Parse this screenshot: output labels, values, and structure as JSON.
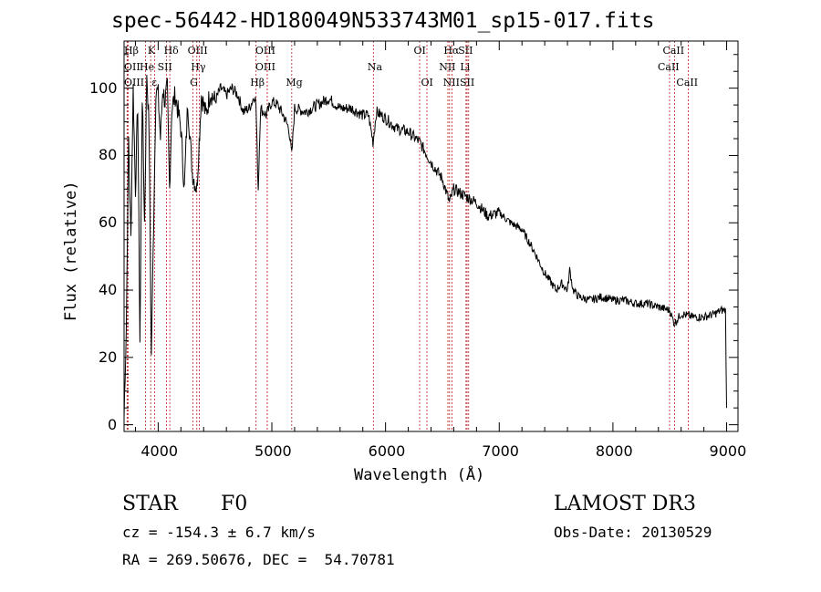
{
  "chart_data": {
    "type": "line",
    "title": "spec-56442-HD180049N533743M01_sp15-017.fits",
    "xlabel": "Wavelength (Å)",
    "ylabel": "Flux (relative)",
    "xlim": [
      3700,
      9100
    ],
    "ylim": [
      -2,
      114
    ],
    "x_ticks": [
      4000,
      5000,
      6000,
      7000,
      8000,
      9000
    ],
    "y_ticks": [
      0,
      20,
      40,
      60,
      80,
      100
    ],
    "series": [
      {
        "name": "flux",
        "x": [
          3700,
          3720,
          3740,
          3760,
          3780,
          3800,
          3820,
          3840,
          3860,
          3880,
          3900,
          3920,
          3940,
          3960,
          3980,
          4000,
          4020,
          4040,
          4060,
          4080,
          4100,
          4120,
          4150,
          4180,
          4200,
          4230,
          4260,
          4300,
          4340,
          4380,
          4420,
          4460,
          4500,
          4550,
          4600,
          4650,
          4700,
          4750,
          4800,
          4850,
          4860,
          4880,
          4900,
          4950,
          5000,
          5050,
          5100,
          5150,
          5175,
          5200,
          5300,
          5400,
          5500,
          5600,
          5700,
          5800,
          5850,
          5890,
          5920,
          6000,
          6100,
          6200,
          6300,
          6400,
          6500,
          6562,
          6600,
          6700,
          6800,
          6900,
          7000,
          7100,
          7200,
          7300,
          7400,
          7500,
          7550,
          7600,
          7620,
          7650,
          7700,
          7800,
          7900,
          8000,
          8100,
          8200,
          8300,
          8400,
          8500,
          8540,
          8600,
          8700,
          8800,
          8900,
          8950,
          8990,
          9000
        ],
        "y": [
          2,
          30,
          85,
          55,
          100,
          70,
          95,
          25,
          98,
          60,
          105,
          88,
          20,
          60,
          100,
          98,
          85,
          100,
          96,
          100,
          70,
          94,
          98,
          92,
          88,
          70,
          96,
          75,
          70,
          98,
          92,
          99,
          96,
          100,
          98,
          100,
          98,
          93,
          94,
          98,
          95,
          70,
          94,
          92,
          96,
          95,
          92,
          88,
          80,
          94,
          93,
          95,
          97,
          94,
          94,
          92,
          92,
          84,
          93,
          91,
          88,
          87,
          84,
          78,
          73,
          66,
          70,
          68,
          66,
          62,
          63,
          60,
          58,
          52,
          45,
          40,
          42,
          40,
          46,
          40,
          38,
          37,
          38,
          37,
          37,
          36,
          36,
          35,
          34,
          30,
          33,
          32,
          32,
          33,
          34,
          34,
          5
        ]
      }
    ],
    "spectral_lines": [
      {
        "label": "Hβ",
        "x": 3735,
        "row": 1
      },
      {
        "label": "OII",
        "x": 3727,
        "row": 2
      },
      {
        "label": "OIII",
        "x": 3727,
        "row": 3
      },
      {
        "label": "K",
        "x": 3934,
        "row": 1
      },
      {
        "label": "He",
        "x": 3889,
        "row": 2
      },
      {
        "label": "ε",
        "x": 3970,
        "row": 3
      },
      {
        "label": "Hδ",
        "x": 4102,
        "row": 1
      },
      {
        "label": "SII",
        "x": 4072,
        "row": 2
      },
      {
        "label": "OIII",
        "x": 4363,
        "row": 1
      },
      {
        "label": "Hγ",
        "x": 4340,
        "row": 2
      },
      {
        "label": "G",
        "x": 4305,
        "row": 3
      },
      {
        "label": "OIII",
        "x": 4959,
        "row": 1
      },
      {
        "label": "OIII",
        "x": 4959,
        "row": 2
      },
      {
        "label": "Hβ",
        "x": 4861,
        "row": 3
      },
      {
        "label": "Mg",
        "x": 5175,
        "row": 3
      },
      {
        "label": "Na",
        "x": 5893,
        "row": 2
      },
      {
        "label": "OI",
        "x": 6300,
        "row": 1
      },
      {
        "label": "OI",
        "x": 6364,
        "row": 3
      },
      {
        "label": "Hα",
        "x": 6563,
        "row": 1
      },
      {
        "label": "NII",
        "x": 6548,
        "row": 2
      },
      {
        "label": "NII",
        "x": 6584,
        "row": 3
      },
      {
        "label": "SII",
        "x": 6717,
        "row": 1
      },
      {
        "label": "Li",
        "x": 6708,
        "row": 2
      },
      {
        "label": "SII",
        "x": 6731,
        "row": 3
      },
      {
        "label": "CaII",
        "x": 8542,
        "row": 1
      },
      {
        "label": "CaII",
        "x": 8498,
        "row": 2
      },
      {
        "label": "CaII",
        "x": 8662,
        "row": 3
      }
    ]
  },
  "info": {
    "object_class": "STAR",
    "subclass": "F0",
    "survey": "LAMOST DR3",
    "cz": "cz = -154.3 ± 6.7 km/s",
    "obs_date": "Obs-Date: 20130529",
    "coords": "RA = 269.50676, DEC =  54.70781"
  }
}
